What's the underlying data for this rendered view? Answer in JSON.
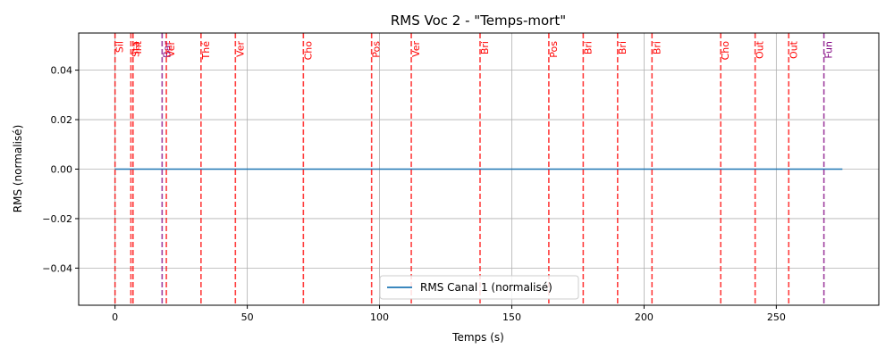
{
  "chart_data": {
    "type": "line",
    "title": "RMS Voc 2 - \"Temps-mort\"",
    "xlabel": "Temps (s)",
    "ylabel": "RMS (normalisé)",
    "xlim": [
      -13.75,
      288.75
    ],
    "ylim": [
      -0.055,
      0.055
    ],
    "xticks": [
      0,
      50,
      100,
      150,
      200,
      250
    ],
    "yticks": [
      -0.04,
      -0.02,
      0.0,
      0.02,
      0.04
    ],
    "ytick_labels": [
      "−0.04",
      "−0.02",
      "0.00",
      "0.02",
      "0.04"
    ],
    "grid": true,
    "legend_position": "bottom-center",
    "series": [
      {
        "name": "RMS Canal 1 (normalisé)",
        "color": "#1f77b4",
        "x": [
          0,
          275
        ],
        "y": [
          0,
          0
        ]
      }
    ],
    "markers": [
      {
        "x": 0,
        "label": "Sil",
        "color": "#ff0000"
      },
      {
        "x": 6,
        "label": "Sta",
        "color": "#ff0000"
      },
      {
        "x": 6.8,
        "label": "Int",
        "color": "#ff0000"
      },
      {
        "x": 17.8,
        "label": "Bar",
        "color": "#800080"
      },
      {
        "x": 19.4,
        "label": "Ver",
        "color": "#ff0000"
      },
      {
        "x": 32.5,
        "label": "Thé",
        "color": "#ff0000"
      },
      {
        "x": 45.5,
        "label": "Ver",
        "color": "#ff0000"
      },
      {
        "x": 71.2,
        "label": "Cho",
        "color": "#ff0000"
      },
      {
        "x": 97.0,
        "label": "Pos",
        "color": "#ff0000"
      },
      {
        "x": 112.0,
        "label": "Ver",
        "color": "#ff0000"
      },
      {
        "x": 138.0,
        "label": "Bri",
        "color": "#ff0000"
      },
      {
        "x": 164.0,
        "label": "Pos",
        "color": "#ff0000"
      },
      {
        "x": 177.0,
        "label": "Bri",
        "color": "#ff0000"
      },
      {
        "x": 190.0,
        "label": "Bri",
        "color": "#ff0000"
      },
      {
        "x": 203.0,
        "label": "Bri",
        "color": "#ff0000"
      },
      {
        "x": 229.0,
        "label": "Cho",
        "color": "#ff0000"
      },
      {
        "x": 242.0,
        "label": "Out",
        "color": "#ff0000"
      },
      {
        "x": 254.7,
        "label": "Out",
        "color": "#ff0000"
      },
      {
        "x": 268.0,
        "label": "Fun",
        "color": "#800080"
      }
    ]
  }
}
